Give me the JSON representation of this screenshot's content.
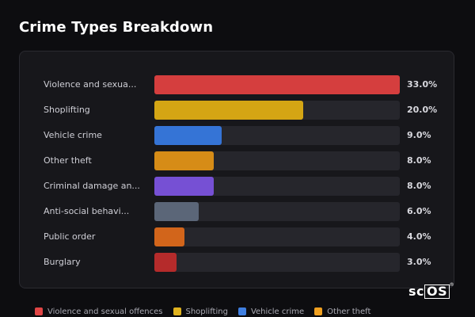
{
  "page_title": "Crime Types Breakdown",
  "logo": {
    "prefix": "sc",
    "boxed": "OS",
    "mark": "®"
  },
  "chart_data": {
    "type": "bar",
    "orientation": "horizontal",
    "title": "Crime Types Breakdown",
    "xlim": [
      0,
      33
    ],
    "categories": [
      "Violence and sexua...",
      "Shoplifting",
      "Vehicle crime",
      "Other theft",
      "Criminal damage an...",
      "Anti-social behavi...",
      "Public order",
      "Burglary"
    ],
    "values": [
      33.0,
      20.0,
      9.0,
      8.0,
      8.0,
      6.0,
      4.0,
      3.0
    ],
    "value_labels": [
      "33.0%",
      "20.0%",
      "9.0%",
      "8.0%",
      "8.0%",
      "6.0%",
      "4.0%",
      "3.0%"
    ],
    "colors": [
      "#d53e3e",
      "#d4a514",
      "#3574d6",
      "#d68c17",
      "#7650d4",
      "#5b6678",
      "#d2651b",
      "#b52b2b"
    ],
    "track_color": "#26262c",
    "legend_position": "bottom",
    "legend": [
      {
        "label": "Violence and sexual offences",
        "color": "#e04545"
      },
      {
        "label": "Shoplifting",
        "color": "#e0b31f"
      },
      {
        "label": "Vehicle crime",
        "color": "#3f7fe0"
      },
      {
        "label": "Other theft",
        "color": "#f0a020"
      }
    ]
  }
}
